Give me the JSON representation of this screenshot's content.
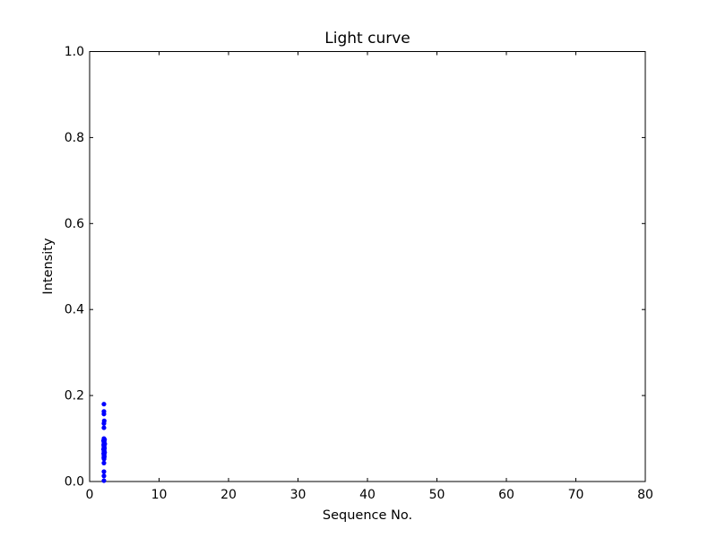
{
  "figure": {
    "background": "#ffffff",
    "axis_color": "#000000"
  },
  "chart_data": {
    "type": "scatter",
    "title": "Light curve",
    "xlabel": "Sequence No.",
    "ylabel": "Intensity",
    "xlim": [
      0,
      80
    ],
    "ylim": [
      0.0,
      1.0
    ],
    "xtick_values": [
      0,
      10,
      20,
      30,
      40,
      50,
      60,
      70,
      80
    ],
    "xtick_labels": [
      "0",
      "10",
      "20",
      "30",
      "40",
      "50",
      "60",
      "70",
      "80"
    ],
    "ytick_values": [
      0.0,
      0.2,
      0.4,
      0.6,
      0.8,
      1.0
    ],
    "ytick_labels": [
      "0.0",
      "0.2",
      "0.4",
      "0.6",
      "0.8",
      "1.0"
    ],
    "grid": false,
    "legend": null,
    "tick_direction": "in",
    "tick_length": 4,
    "marker": "dot",
    "marker_color": "#0000ff",
    "marker_radius": 2.6,
    "series": [
      {
        "name": "intensity",
        "points": [
          [
            2.06,
            0.18
          ],
          [
            2.06,
            0.163
          ],
          [
            2.06,
            0.157
          ],
          [
            2.1,
            0.141
          ],
          [
            2.06,
            0.135
          ],
          [
            2.06,
            0.125
          ],
          [
            2.06,
            0.1
          ],
          [
            2.15,
            0.0975
          ],
          [
            2.0,
            0.095
          ],
          [
            2.1,
            0.0925
          ],
          [
            2.06,
            0.09
          ],
          [
            2.18,
            0.0875
          ],
          [
            2.02,
            0.085
          ],
          [
            2.1,
            0.0825
          ],
          [
            2.06,
            0.08
          ],
          [
            2.14,
            0.0775
          ],
          [
            2.0,
            0.075
          ],
          [
            2.1,
            0.0725
          ],
          [
            2.06,
            0.07
          ],
          [
            2.16,
            0.0675
          ],
          [
            2.02,
            0.065
          ],
          [
            2.1,
            0.0625
          ],
          [
            2.06,
            0.06
          ],
          [
            2.12,
            0.0575
          ],
          [
            2.04,
            0.055
          ],
          [
            2.08,
            0.0525
          ],
          [
            2.06,
            0.043
          ],
          [
            2.06,
            0.023
          ],
          [
            2.06,
            0.013
          ],
          [
            2.06,
            0.002
          ]
        ]
      }
    ]
  }
}
